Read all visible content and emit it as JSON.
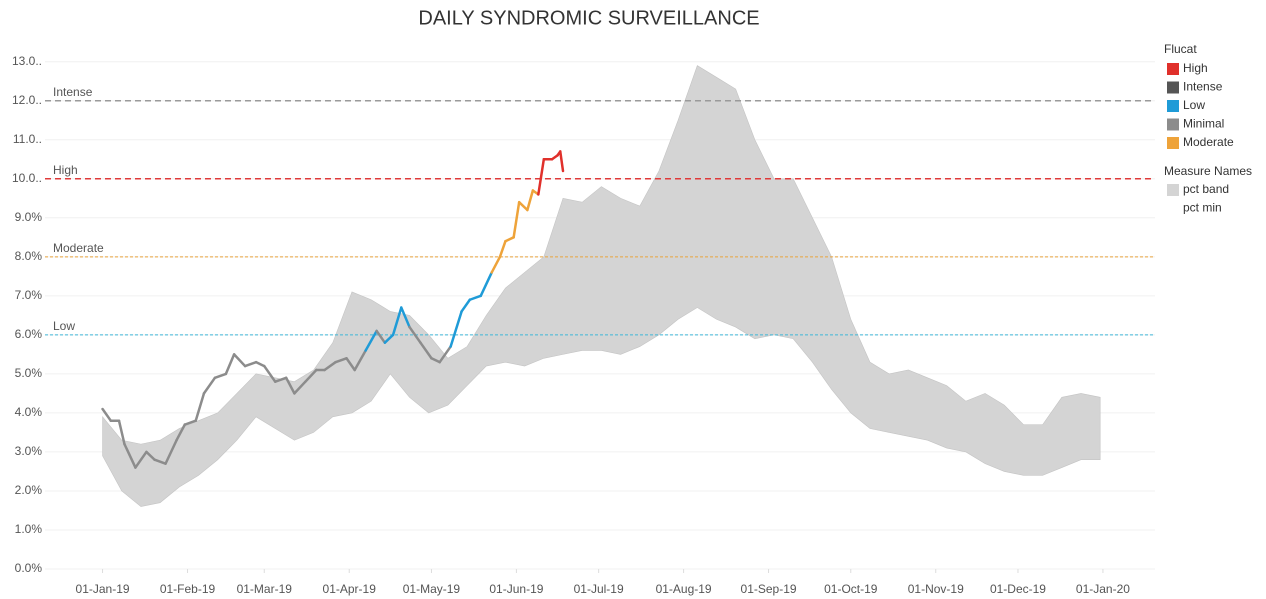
{
  "chart_data": {
    "type": "band-line",
    "title": "DAILY SYNDROMIC SURVEILLANCE",
    "xlim": [
      "2018-12-11",
      "2020-01-20"
    ],
    "xticks": [
      {
        "value": "2019-01-01",
        "label": "01-Jan-19"
      },
      {
        "value": "2019-02-01",
        "label": "01-Feb-19"
      },
      {
        "value": "2019-03-01",
        "label": "01-Mar-19"
      },
      {
        "value": "2019-04-01",
        "label": "01-Apr-19"
      },
      {
        "value": "2019-05-01",
        "label": "01-May-19"
      },
      {
        "value": "2019-06-01",
        "label": "01-Jun-19"
      },
      {
        "value": "2019-07-01",
        "label": "01-Jul-19"
      },
      {
        "value": "2019-08-01",
        "label": "01-Aug-19"
      },
      {
        "value": "2019-09-01",
        "label": "01-Sep-19"
      },
      {
        "value": "2019-10-01",
        "label": "01-Oct-19"
      },
      {
        "value": "2019-11-01",
        "label": "01-Nov-19"
      },
      {
        "value": "2019-12-01",
        "label": "01-Dec-19"
      },
      {
        "value": "2020-01-01",
        "label": "01-Jan-20"
      }
    ],
    "ylim": [
      0,
      13.3
    ],
    "yticks": [
      {
        "value": 0,
        "label": "0.0%"
      },
      {
        "value": 1,
        "label": "1.0%"
      },
      {
        "value": 2,
        "label": "2.0%"
      },
      {
        "value": 3,
        "label": "3.0%"
      },
      {
        "value": 4,
        "label": "4.0%"
      },
      {
        "value": 5,
        "label": "5.0%"
      },
      {
        "value": 6,
        "label": "6.0%"
      },
      {
        "value": 7,
        "label": "7.0%"
      },
      {
        "value": 8,
        "label": "8.0%"
      },
      {
        "value": 9,
        "label": "9.0%"
      },
      {
        "value": 10,
        "label": "10.0.."
      },
      {
        "value": 11,
        "label": "11.0.."
      },
      {
        "value": 12,
        "label": "12.0.."
      },
      {
        "value": 13,
        "label": "13.0.."
      }
    ],
    "grid": true,
    "thresholds": [
      {
        "label": "Intense",
        "value": 12,
        "color": "#9a9a9a"
      },
      {
        "label": "High",
        "value": 10,
        "color": "#e03a3a"
      },
      {
        "label": "Moderate",
        "value": 8,
        "color": "#e8a33d"
      },
      {
        "label": "Low",
        "value": 6,
        "color": "#3fb6d8"
      }
    ],
    "flucat_title": "Flucat",
    "flucat": [
      {
        "name": "High",
        "color": "#e0302b"
      },
      {
        "name": "Intense",
        "color": "#555555"
      },
      {
        "name": "Low",
        "color": "#1f9bd7"
      },
      {
        "name": "Minimal",
        "color": "#8c8c8c"
      },
      {
        "name": "Moderate",
        "color": "#eea33a"
      }
    ],
    "measure_title": "Measure Names",
    "band_x": [
      "2019-01-01",
      "2019-01-08",
      "2019-01-15",
      "2019-01-22",
      "2019-01-29",
      "2019-02-05",
      "2019-02-12",
      "2019-02-19",
      "2019-02-26",
      "2019-03-05",
      "2019-03-12",
      "2019-03-19",
      "2019-03-26",
      "2019-04-02",
      "2019-04-09",
      "2019-04-16",
      "2019-04-23",
      "2019-04-30",
      "2019-05-07",
      "2019-05-14",
      "2019-05-21",
      "2019-05-28",
      "2019-06-04",
      "2019-06-11",
      "2019-06-18",
      "2019-06-25",
      "2019-07-02",
      "2019-07-09",
      "2019-07-16",
      "2019-07-23",
      "2019-07-30",
      "2019-08-06",
      "2019-08-13",
      "2019-08-20",
      "2019-08-27",
      "2019-09-03",
      "2019-09-10",
      "2019-09-17",
      "2019-09-24",
      "2019-10-01",
      "2019-10-08",
      "2019-10-15",
      "2019-10-22",
      "2019-10-29",
      "2019-11-05",
      "2019-11-12",
      "2019-11-19",
      "2019-11-26",
      "2019-12-03",
      "2019-12-10",
      "2019-12-17",
      "2019-12-24",
      "2019-12-31"
    ],
    "series": [
      {
        "name": "pct band",
        "color": "#d4d4d4",
        "values": [
          1.0,
          1.3,
          1.6,
          1.6,
          1.5,
          1.4,
          1.2,
          1.2,
          1.1,
          1.3,
          1.5,
          1.6,
          1.9,
          3.1,
          2.6,
          1.6,
          2.1,
          2.0,
          1.2,
          1.0,
          1.3,
          1.9,
          2.4,
          2.6,
          4.0,
          3.8,
          4.2,
          4.0,
          3.6,
          4.2,
          5.1,
          6.2,
          6.2,
          6.1,
          5.1,
          4.0,
          4.1,
          3.7,
          3.4,
          2.4,
          1.7,
          1.5,
          1.7,
          1.6,
          1.6,
          1.3,
          1.8,
          1.7,
          1.3,
          1.3,
          1.8,
          1.7,
          1.6
        ]
      },
      {
        "name": "pct min",
        "color": "none",
        "values": [
          2.9,
          2.0,
          1.6,
          1.7,
          2.1,
          2.4,
          2.8,
          3.3,
          3.9,
          3.6,
          3.3,
          3.5,
          3.9,
          4.0,
          4.3,
          5.0,
          4.4,
          4.0,
          4.2,
          4.7,
          5.2,
          5.3,
          5.2,
          5.4,
          5.5,
          5.6,
          5.6,
          5.5,
          5.7,
          6.0,
          6.4,
          6.7,
          6.4,
          6.2,
          5.9,
          6.0,
          5.9,
          5.3,
          4.6,
          4.0,
          3.6,
          3.5,
          3.4,
          3.3,
          3.1,
          3.0,
          2.7,
          2.5,
          2.4,
          2.4,
          2.6,
          2.8,
          2.8
        ]
      }
    ],
    "line": {
      "x": [
        "2019-01-01",
        "2019-01-04",
        "2019-01-07",
        "2019-01-09",
        "2019-01-13",
        "2019-01-17",
        "2019-01-20",
        "2019-01-24",
        "2019-01-28",
        "2019-01-31",
        "2019-02-04",
        "2019-02-07",
        "2019-02-11",
        "2019-02-15",
        "2019-02-18",
        "2019-02-22",
        "2019-02-26",
        "2019-03-01",
        "2019-03-05",
        "2019-03-09",
        "2019-03-12",
        "2019-03-16",
        "2019-03-20",
        "2019-03-23",
        "2019-03-27",
        "2019-03-31",
        "2019-04-03",
        "2019-04-07",
        "2019-04-11",
        "2019-04-14",
        "2019-04-17",
        "2019-04-20",
        "2019-04-23",
        "2019-04-27",
        "2019-05-01",
        "2019-05-04",
        "2019-05-08",
        "2019-05-12",
        "2019-05-15",
        "2019-05-19",
        "2019-05-23",
        "2019-05-26",
        "2019-05-28",
        "2019-05-31",
        "2019-06-02",
        "2019-06-05",
        "2019-06-07",
        "2019-06-09",
        "2019-06-11",
        "2019-06-14",
        "2019-06-16",
        "2019-06-17",
        "2019-06-18"
      ],
      "values": [
        4.1,
        3.8,
        3.8,
        3.2,
        2.6,
        3.0,
        2.8,
        2.7,
        3.3,
        3.7,
        3.8,
        4.5,
        4.9,
        5.0,
        5.5,
        5.2,
        5.3,
        5.2,
        4.8,
        4.9,
        4.5,
        4.8,
        5.1,
        5.1,
        5.3,
        5.4,
        5.1,
        5.6,
        6.1,
        5.8,
        6.0,
        6.7,
        6.2,
        5.8,
        5.4,
        5.3,
        5.7,
        6.6,
        6.9,
        7.0,
        7.6,
        8.0,
        8.4,
        8.5,
        9.4,
        9.2,
        9.7,
        9.6,
        10.5,
        10.5,
        10.6,
        10.7,
        10.2
      ],
      "flucat": [
        "Minimal",
        "Minimal",
        "Minimal",
        "Minimal",
        "Minimal",
        "Minimal",
        "Minimal",
        "Minimal",
        "Minimal",
        "Minimal",
        "Minimal",
        "Minimal",
        "Minimal",
        "Minimal",
        "Minimal",
        "Minimal",
        "Minimal",
        "Minimal",
        "Minimal",
        "Minimal",
        "Minimal",
        "Minimal",
        "Minimal",
        "Minimal",
        "Minimal",
        "Minimal",
        "Minimal",
        "Minimal",
        "Low",
        "Minimal",
        "Low",
        "Low",
        "Low",
        "Minimal",
        "Minimal",
        "Minimal",
        "Minimal",
        "Low",
        "Low",
        "Low",
        "Low",
        "Moderate",
        "Moderate",
        "Moderate",
        "Moderate",
        "Moderate",
        "Moderate",
        "Moderate",
        "High",
        "High",
        "High",
        "High",
        "High"
      ]
    }
  }
}
